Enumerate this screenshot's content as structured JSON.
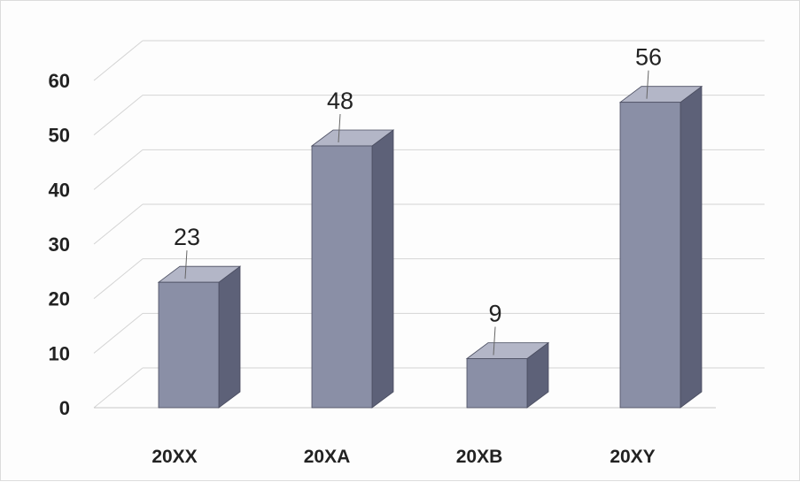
{
  "chart_data": {
    "type": "bar",
    "categories": [
      "20XX",
      "20XA",
      "20XB",
      "20XY"
    ],
    "values": [
      23,
      48,
      9,
      56
    ],
    "data_labels": [
      "23",
      "48",
      "9",
      "56"
    ],
    "ylim": [
      0,
      60
    ],
    "yticks": [
      "0",
      "10",
      "20",
      "30",
      "40",
      "50",
      "60"
    ],
    "grid": true,
    "style": "3d-column",
    "colors": {
      "front": "#8a8fa6",
      "side": "#5d6178",
      "top": "#b3b6c7",
      "grid": "#d4d4d4"
    }
  }
}
